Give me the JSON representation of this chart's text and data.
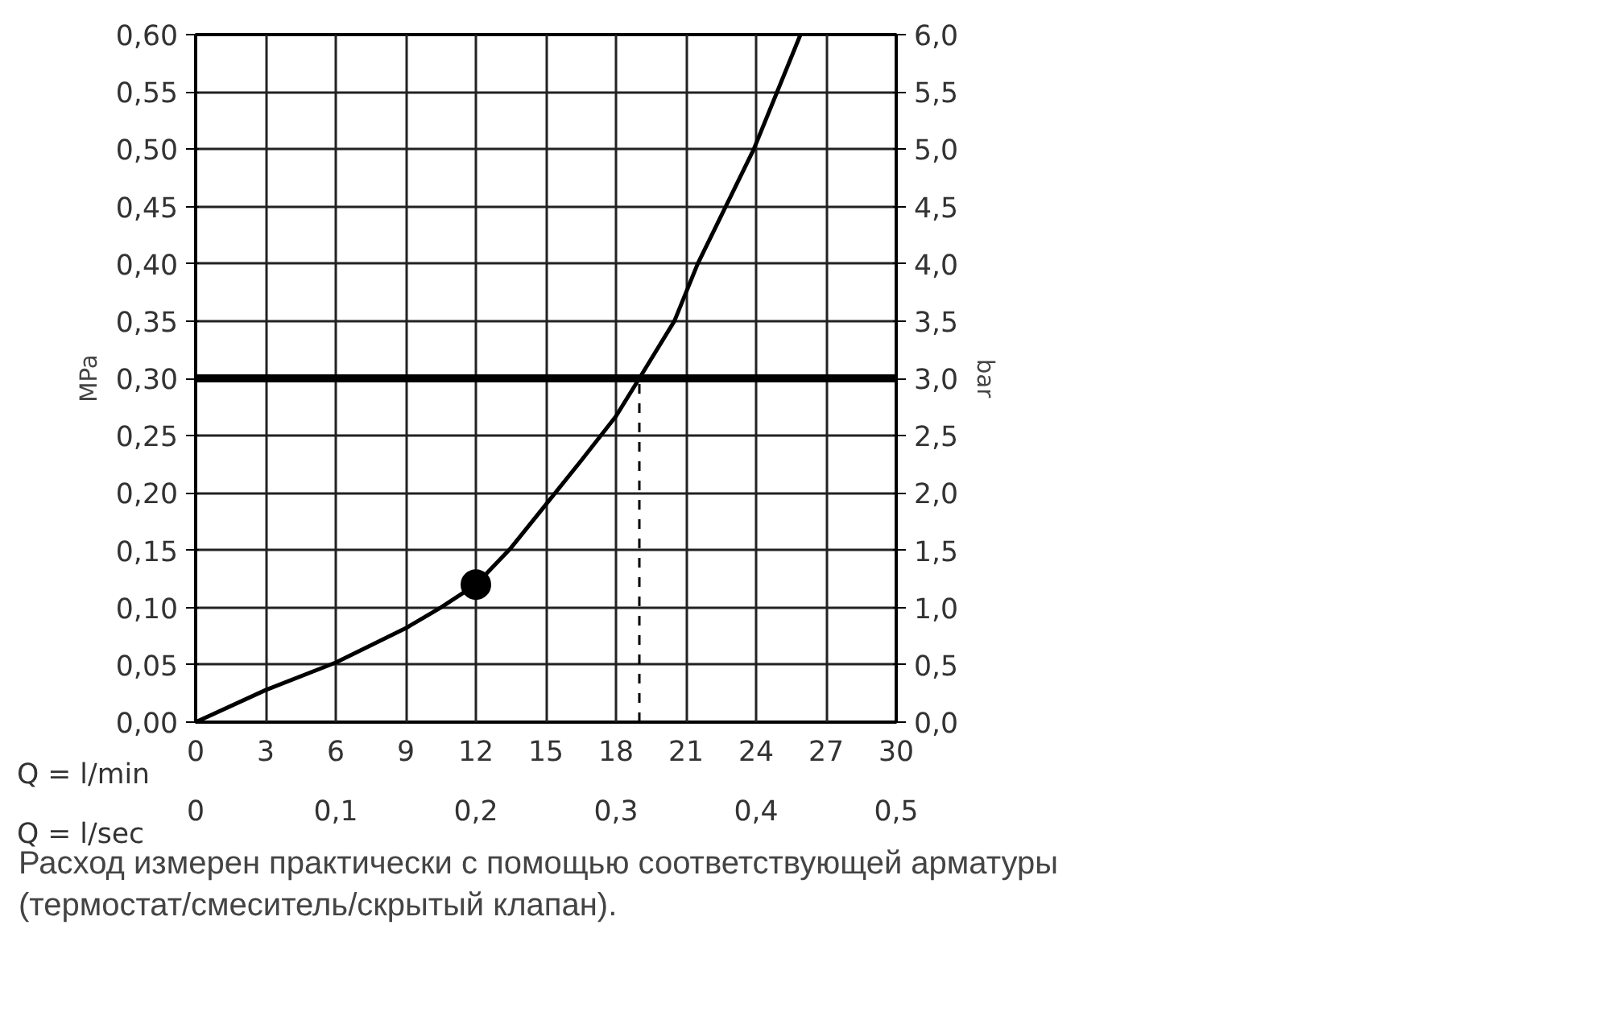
{
  "chart_data": {
    "type": "line",
    "xlabel": "Q = l/min",
    "x2label": "Q = l/sec",
    "ylabel": "MPa",
    "y2label": "bar",
    "x": [
      0,
      3,
      6,
      9,
      10.5,
      12,
      13.5,
      15,
      16.5,
      18,
      19,
      20.5,
      21.5,
      23.9,
      25.9
    ],
    "series": [
      {
        "color": "#000000",
        "values": [
          0,
          0.028,
          0.052,
          0.082,
          0.1,
          0.12,
          0.152,
          0.19,
          0.228,
          0.267,
          0.3,
          0.35,
          0.4,
          0.5,
          0.6
        ]
      },
      {
        "type": "scatter",
        "marker": "circle",
        "color": "#000000",
        "x": [
          12
        ],
        "values": [
          0.12
        ]
      }
    ],
    "xlim": [
      0,
      30
    ],
    "xticks": [
      0,
      3,
      6,
      9,
      12,
      15,
      18,
      21,
      24,
      27,
      30
    ],
    "x2lim": [
      0,
      0.5
    ],
    "x2ticks": [
      0,
      {
        "value": 0.1,
        "label": "0,1"
      },
      {
        "value": 0.2,
        "label": "0,2"
      },
      {
        "value": 0.3,
        "label": "0,3"
      },
      {
        "value": 0.4,
        "label": "0,4"
      },
      {
        "value": 0.5,
        "label": "0,5"
      }
    ],
    "ylim": [
      0,
      0.6
    ],
    "yticks": [
      {
        "value": 0,
        "label": "0,00"
      },
      {
        "value": 0.05,
        "label": "0,05"
      },
      {
        "value": 0.1,
        "label": "0,10"
      },
      {
        "value": 0.15,
        "label": "0,15"
      },
      {
        "value": 0.2,
        "label": "0,20"
      },
      {
        "value": 0.25,
        "label": "0,25"
      },
      {
        "value": 0.3,
        "label": "0,30"
      },
      {
        "value": 0.35,
        "label": "0,35"
      },
      {
        "value": 0.4,
        "label": "0,40"
      },
      {
        "value": 0.45,
        "label": "0,45"
      },
      {
        "value": 0.5,
        "label": "0,50"
      },
      {
        "value": 0.55,
        "label": "0,55"
      },
      {
        "value": 0.6,
        "label": "0,60"
      }
    ],
    "y2lim": [
      0,
      6
    ],
    "y2ticks": [
      {
        "value": 0,
        "label": "0,0"
      },
      {
        "value": 0.5,
        "label": "0,5"
      },
      {
        "value": 1,
        "label": "1,0"
      },
      {
        "value": 1.5,
        "label": "1,5"
      },
      {
        "value": 2,
        "label": "2,0"
      },
      {
        "value": 2.5,
        "label": "2,5"
      },
      {
        "value": 3,
        "label": "3,0"
      },
      {
        "value": 3.5,
        "label": "3,5"
      },
      {
        "value": 4,
        "label": "4,0"
      },
      {
        "value": 4.5,
        "label": "4,5"
      },
      {
        "value": 5,
        "label": "5,0"
      },
      {
        "value": 5.5,
        "label": "5,5"
      },
      {
        "value": 6,
        "label": "6,0"
      }
    ],
    "ref_lines": [
      {
        "axis": "y",
        "value": 0.3,
        "color": "#000000",
        "line_style": "solid"
      },
      {
        "axis": "x",
        "value": 19,
        "color": "#000000",
        "line_style": "dashed"
      }
    ],
    "grid": true,
    "marker": "none",
    "line_style": "solid",
    "annotations": [
      "Расход измерен практически с помощью соответствующей арматуры (термостат/смеситель/скрытый клапан)."
    ]
  }
}
